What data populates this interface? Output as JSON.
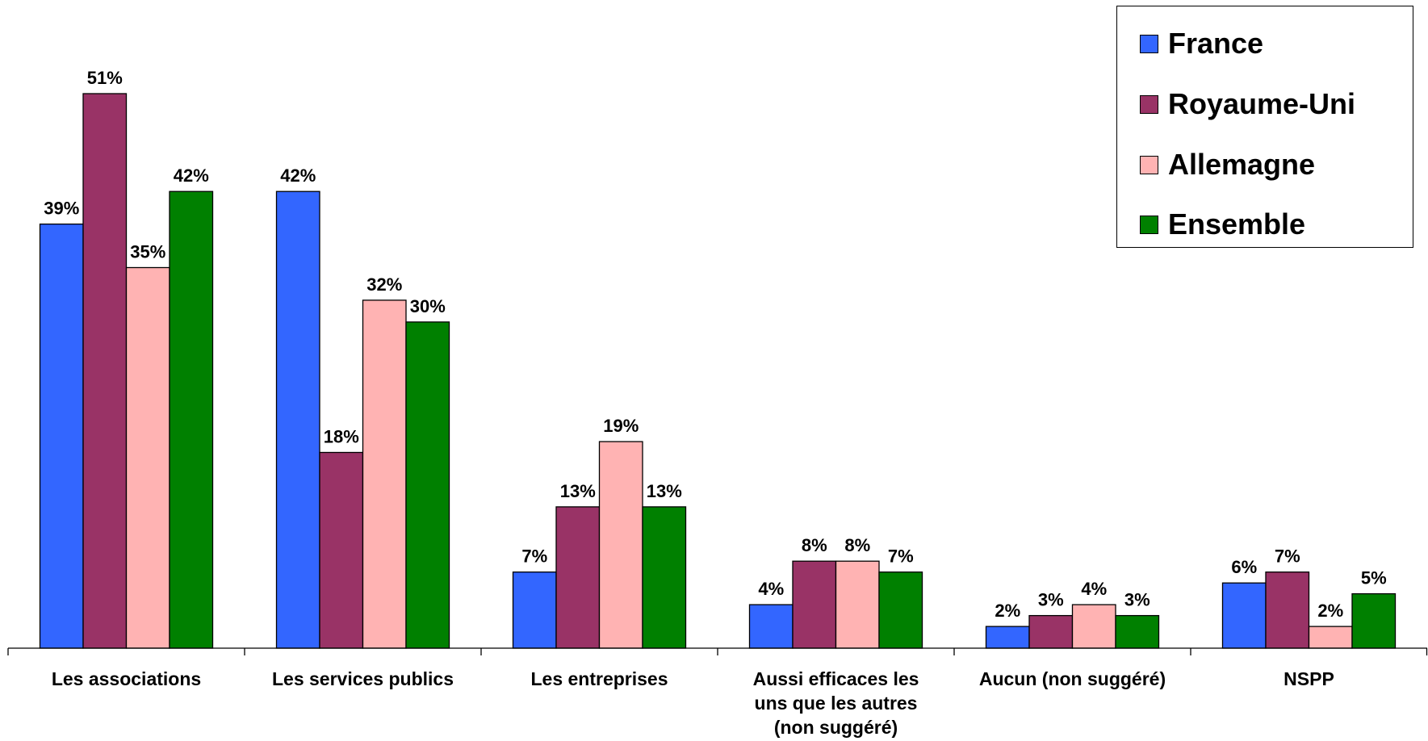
{
  "chart_data": {
    "type": "bar",
    "categories": [
      [
        "Les associations"
      ],
      [
        "Les services publics"
      ],
      [
        "Les entreprises"
      ],
      [
        "Aussi efficaces les",
        "uns que les autres",
        "(non suggéré)"
      ],
      [
        "Aucun (non suggéré)"
      ],
      [
        "NSPP"
      ]
    ],
    "series": [
      {
        "name": "France",
        "color": "#3366FF",
        "values": [
          39,
          42,
          7,
          4,
          2,
          6
        ]
      },
      {
        "name": "Royaume-Uni",
        "color": "#993366",
        "values": [
          51,
          18,
          13,
          8,
          3,
          7
        ]
      },
      {
        "name": "Allemagne",
        "color": "#FFB3B3",
        "values": [
          35,
          32,
          19,
          8,
          4,
          2
        ]
      },
      {
        "name": "Ensemble",
        "color": "#008000",
        "values": [
          42,
          30,
          13,
          7,
          3,
          5
        ]
      }
    ],
    "value_suffix": "%",
    "ylim": [
      0,
      51
    ],
    "legend_position": "top-right",
    "grid": false
  }
}
